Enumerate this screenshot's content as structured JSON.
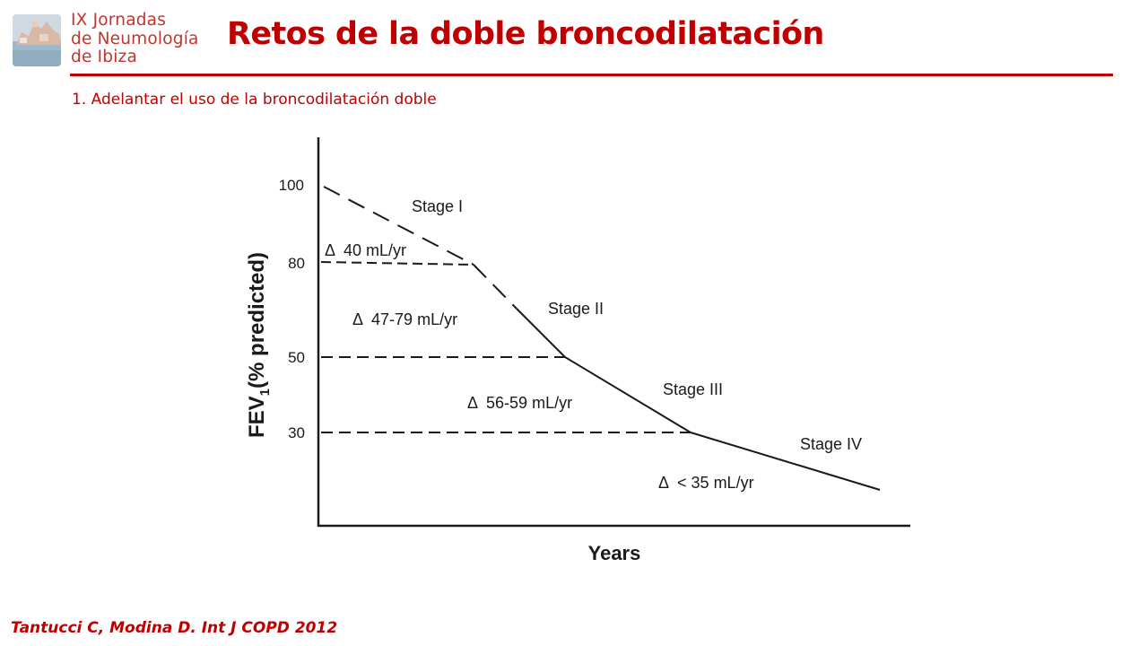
{
  "logo": {
    "line1": "IX Jornadas",
    "line2": "de Neumología",
    "line3": "de Ibiza"
  },
  "slide": {
    "title": "Retos de la doble broncodilatación",
    "subtitle": "1. Adelantar el uso de la broncodilatación doble",
    "citation": "Tantucci C, Modina D. Int J COPD 2012"
  },
  "diagram": {
    "y_axis_label": "FEV",
    "y_axis_label_sub": "1",
    "y_axis_label_rest": "(% predicted)",
    "x_axis_label": "Years",
    "ticks": [
      "100",
      "80",
      "50",
      "30"
    ],
    "stages": [
      {
        "label": "Stage I",
        "delta": "Δ  40 mL/yr"
      },
      {
        "label": "Stage II",
        "delta": "Δ  47-79 mL/yr"
      },
      {
        "label": "Stage III",
        "delta": "Δ  56-59 mL/yr"
      },
      {
        "label": "Stage IV",
        "delta": "Δ  < 35 mL/yr"
      }
    ],
    "colors": {
      "ink": "#1a1a1a",
      "accent": "#c00000"
    }
  }
}
